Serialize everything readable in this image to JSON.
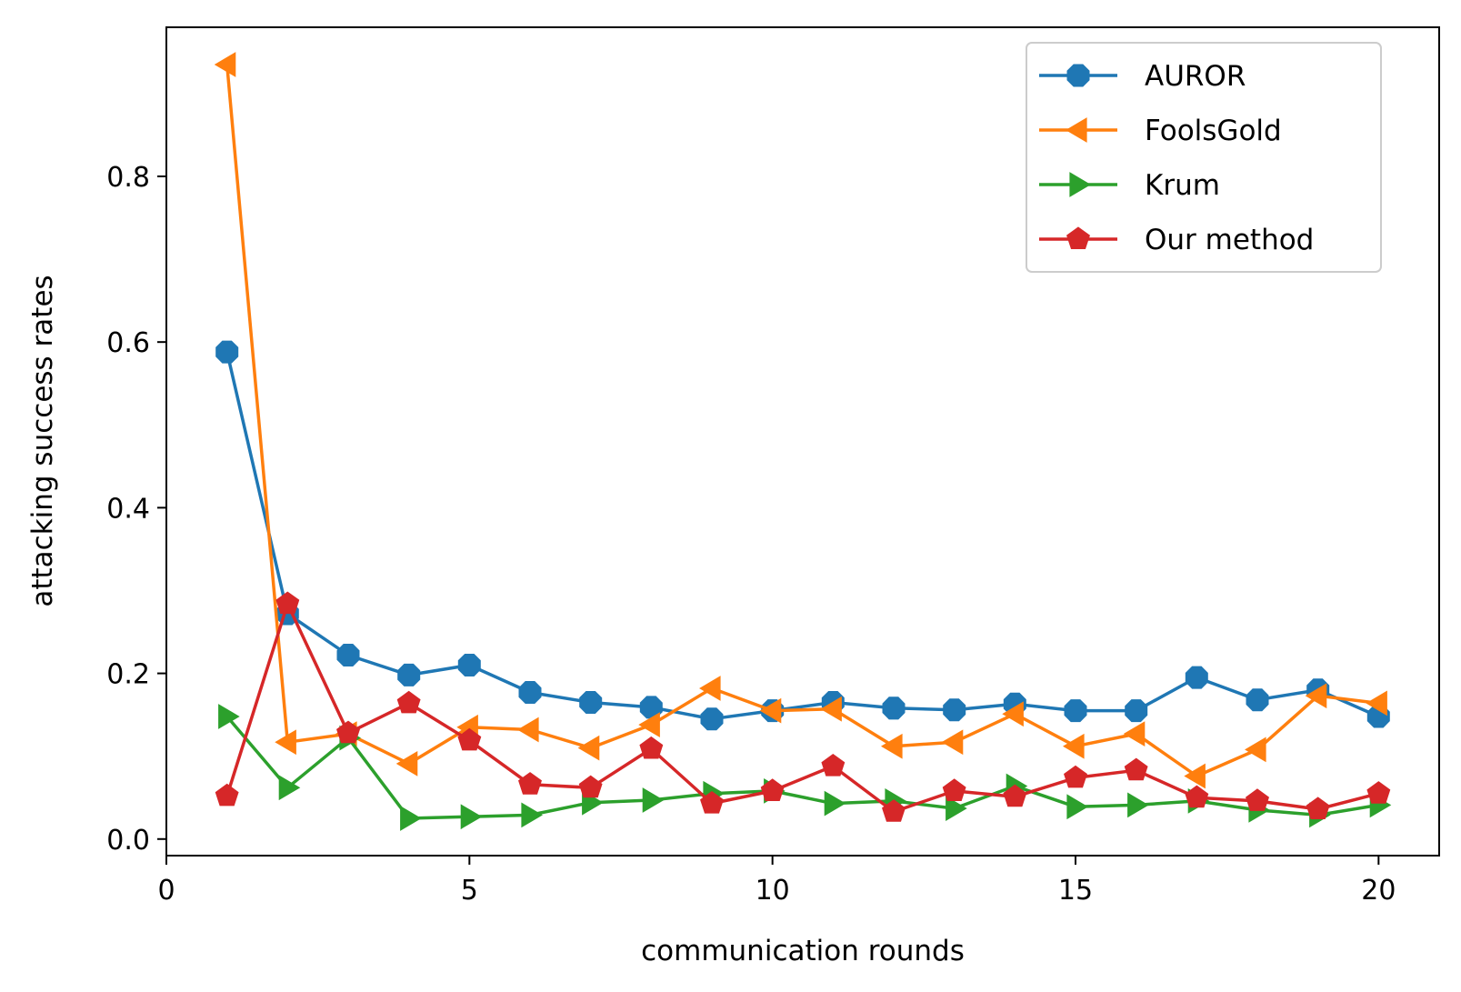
{
  "chart_data": {
    "type": "line",
    "title": "",
    "xlabel": "communication rounds",
    "ylabel": "attacking success rates",
    "xlim": [
      0,
      21
    ],
    "ylim": [
      -0.02,
      0.98
    ],
    "xticks": [
      0,
      5,
      10,
      15,
      20
    ],
    "yticks": [
      0.0,
      0.2,
      0.4,
      0.6,
      0.8
    ],
    "xtick_labels": [
      "0",
      "5",
      "10",
      "15",
      "20"
    ],
    "ytick_labels": [
      "0.0",
      "0.2",
      "0.4",
      "0.6",
      "0.8"
    ],
    "grid": false,
    "legend_position": "top-right",
    "x": [
      1,
      2,
      3,
      4,
      5,
      6,
      7,
      8,
      9,
      10,
      11,
      12,
      13,
      14,
      15,
      16,
      17,
      18,
      19,
      20
    ],
    "series": [
      {
        "name": "AUROR",
        "color": "#1f77b4",
        "marker": "octagon",
        "values": [
          0.588,
          0.272,
          0.222,
          0.198,
          0.21,
          0.177,
          0.165,
          0.159,
          0.145,
          0.155,
          0.165,
          0.158,
          0.156,
          0.163,
          0.155,
          0.155,
          0.195,
          0.168,
          0.18,
          0.148
        ]
      },
      {
        "name": "FoolsGold",
        "color": "#ff7f0e",
        "marker": "triangle-left",
        "values": [
          0.935,
          0.117,
          0.127,
          0.091,
          0.135,
          0.132,
          0.11,
          0.138,
          0.182,
          0.155,
          0.157,
          0.112,
          0.117,
          0.151,
          0.112,
          0.127,
          0.076,
          0.108,
          0.173,
          0.164
        ]
      },
      {
        "name": "Krum",
        "color": "#2ca02c",
        "marker": "triangle-right",
        "values": [
          0.148,
          0.062,
          0.122,
          0.025,
          0.027,
          0.029,
          0.044,
          0.047,
          0.055,
          0.058,
          0.043,
          0.046,
          0.037,
          0.064,
          0.039,
          0.041,
          0.046,
          0.035,
          0.029,
          0.041
        ]
      },
      {
        "name": "Our method",
        "color": "#d62728",
        "marker": "pentagon",
        "values": [
          0.052,
          0.284,
          0.128,
          0.164,
          0.119,
          0.066,
          0.062,
          0.109,
          0.043,
          0.058,
          0.088,
          0.033,
          0.058,
          0.051,
          0.074,
          0.083,
          0.05,
          0.046,
          0.036,
          0.055
        ]
      }
    ]
  }
}
